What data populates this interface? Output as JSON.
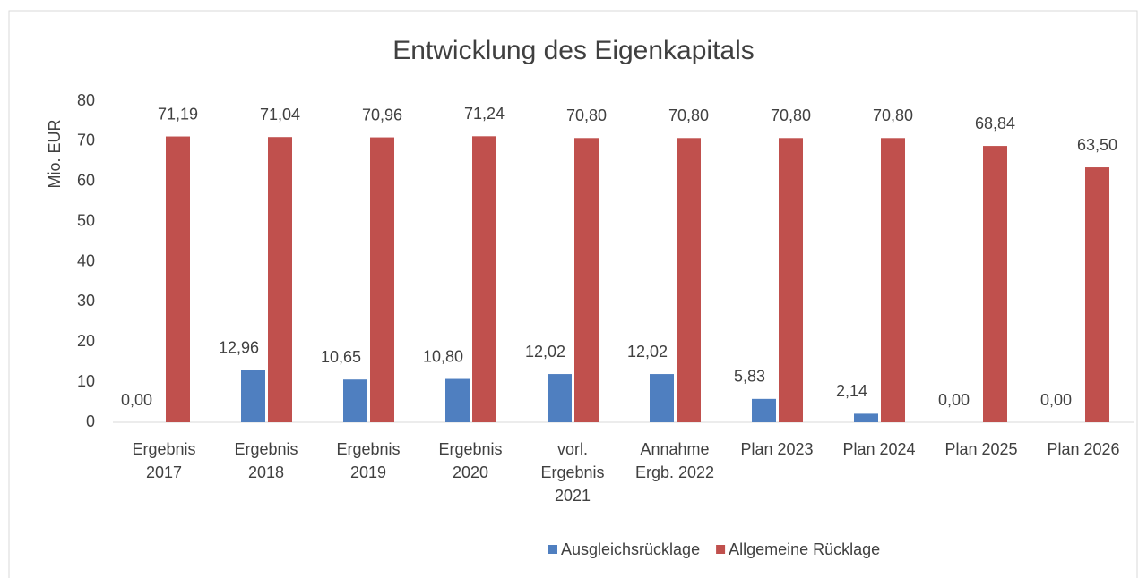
{
  "chart_data": {
    "type": "bar",
    "title": "Entwicklung des Eigenkapitals",
    "y_label": "Mio.  EUR",
    "categories": [
      "Ergebnis\n2017",
      "Ergebnis\n2018",
      "Ergebnis\n2019",
      "Ergebnis\n2020",
      "vorl.\nErgebnis\n2021",
      "Annahme\nErgb. 2022",
      "Plan 2023",
      "Plan 2024",
      "Plan 2025",
      "Plan 2026"
    ],
    "series": [
      {
        "name": "Ausgleichsrücklage",
        "color": "#4f7fc0",
        "values": [
          0,
          12.96,
          10.65,
          10.8,
          12.02,
          12.02,
          5.83,
          2.14,
          0,
          0
        ],
        "value_labels": [
          "0,00",
          "12,96",
          "10,65",
          "10,80",
          "12,02",
          "12,02",
          "5,83",
          "2,14",
          "0,00",
          "0,00"
        ]
      },
      {
        "name": "Allgemeine Rücklage",
        "color": "#c0504d",
        "values": [
          71.19,
          71.04,
          70.96,
          71.24,
          70.8,
          70.8,
          70.8,
          70.8,
          68.84,
          63.5
        ],
        "value_labels": [
          "71,19",
          "71,04",
          "70,96",
          "71,24",
          "70,80",
          "70,80",
          "70,80",
          "70,80",
          "68,84",
          "63,50"
        ]
      }
    ],
    "ylim": [
      0,
      80
    ],
    "yticks": [
      0,
      10,
      20,
      30,
      40,
      50,
      60,
      70,
      80
    ],
    "grid": false,
    "legend": "bottom"
  }
}
